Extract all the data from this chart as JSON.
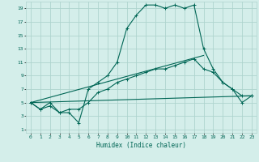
{
  "xlabel": "Humidex (Indice chaleur)",
  "bg_color": "#d4eeea",
  "grid_color": "#aed4ce",
  "line_color": "#006655",
  "xlim": [
    -0.5,
    23.5
  ],
  "ylim": [
    0.5,
    20
  ],
  "xticks": [
    0,
    1,
    2,
    3,
    4,
    5,
    6,
    7,
    8,
    9,
    10,
    11,
    12,
    13,
    14,
    15,
    16,
    17,
    18,
    19,
    20,
    21,
    22,
    23
  ],
  "yticks": [
    1,
    3,
    5,
    7,
    9,
    11,
    13,
    15,
    17,
    19
  ],
  "series1_x": [
    0,
    1,
    2,
    3,
    4,
    5,
    6,
    7,
    8,
    9,
    10,
    11,
    12,
    13,
    14,
    15,
    16,
    17,
    18,
    19,
    20,
    21,
    22,
    23
  ],
  "series1_y": [
    5,
    4,
    5,
    3.5,
    3.5,
    2,
    7,
    8,
    9,
    11,
    16,
    18,
    19.5,
    19.5,
    19,
    19.5,
    19,
    19.5,
    13,
    10,
    8,
    7,
    5,
    6
  ],
  "series2_x": [
    0,
    1,
    2,
    3,
    4,
    5,
    6,
    7,
    8,
    9,
    10,
    11,
    12,
    13,
    14,
    15,
    16,
    17,
    18,
    19,
    20,
    21,
    22,
    23
  ],
  "series2_y": [
    5,
    4,
    4.5,
    3.5,
    4,
    4,
    5,
    6.5,
    7,
    8,
    8.5,
    9,
    9.5,
    10,
    10,
    10.5,
    11,
    11.5,
    10,
    9.5,
    8,
    7,
    6,
    6
  ],
  "series3_x": [
    0,
    18
  ],
  "series3_y": [
    5,
    12
  ],
  "series4_x": [
    0,
    23
  ],
  "series4_y": [
    5,
    6
  ]
}
